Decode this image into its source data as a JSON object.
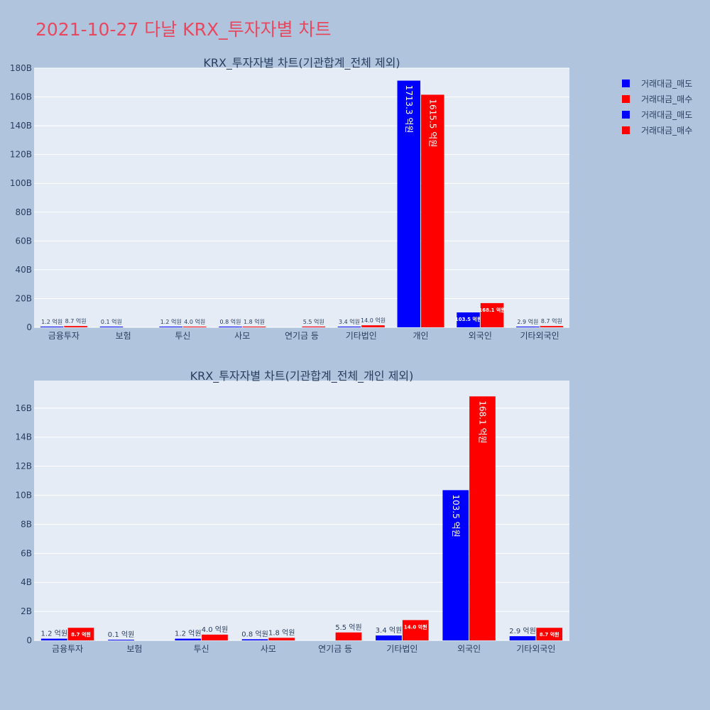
{
  "page_title": "2021-10-27 다날 KRX_투자자별 차트",
  "colors": {
    "sell": "#0000ff",
    "buy": "#ff0000",
    "plot_bg": "#e5ecf6",
    "page_bg": "#b0c4de",
    "title": "#e8485f"
  },
  "legend": [
    {
      "name": "거래대금_매도",
      "color": "#0000ff"
    },
    {
      "name": "거래대금_매수",
      "color": "#ff0000"
    },
    {
      "name": "거래대금_매도",
      "color": "#0000ff"
    },
    {
      "name": "거래대금_매수",
      "color": "#ff0000"
    }
  ],
  "chart_data": [
    {
      "type": "bar",
      "title": "KRX_투자자별 차트(기관합계_전체 제외)",
      "categories": [
        "금융투자",
        "보험",
        "투신",
        "사모",
        "연기금 등",
        "기타법인",
        "개인",
        "외국인",
        "기타외국인"
      ],
      "ylim": [
        0,
        180
      ],
      "yticks": [
        0,
        20,
        40,
        60,
        80,
        100,
        120,
        140,
        160,
        180
      ],
      "ytick_labels": [
        "0",
        "20B",
        "40B",
        "60B",
        "80B",
        "100B",
        "120B",
        "140B",
        "160B",
        "180B"
      ],
      "grid": true,
      "legend_position": "top-right",
      "series": [
        {
          "name": "거래대금_매도",
          "color": "#0000ff",
          "values": [
            0.12,
            0.01,
            0.12,
            0.08,
            0,
            0.34,
            171.33,
            10.35,
            0.29
          ],
          "labels": [
            "1.2 억원",
            "0.1 억원",
            "1.2 억원",
            "0.8 억원",
            "",
            "3.4 억원",
            "1713.3 억원",
            "103.5 억원",
            "2.9 억원"
          ]
        },
        {
          "name": "거래대금_매수",
          "color": "#ff0000",
          "values": [
            0.87,
            0,
            0.4,
            0.18,
            0.55,
            1.4,
            161.55,
            16.81,
            0.87
          ],
          "labels": [
            "8.7 억원",
            "",
            "4.0 억원",
            "1.8 억원",
            "5.5 억원",
            "14.0 억원",
            "1615.5 억원",
            "168.1 억원",
            "8.7 억원"
          ]
        }
      ]
    },
    {
      "type": "bar",
      "title": "KRX_투자자별 차트(기관합계_전체_개인 제외)",
      "categories": [
        "금융투자",
        "보험",
        "투신",
        "사모",
        "연기금 등",
        "기타법인",
        "외국인",
        "기타외국인"
      ],
      "ylim": [
        0,
        17.9
      ],
      "yticks": [
        0,
        2,
        4,
        6,
        8,
        10,
        12,
        14,
        16
      ],
      "ytick_labels": [
        "0",
        "2B",
        "4B",
        "6B",
        "8B",
        "10B",
        "12B",
        "14B",
        "16B"
      ],
      "grid": true,
      "series": [
        {
          "name": "거래대금_매도",
          "color": "#0000ff",
          "values": [
            0.12,
            0.01,
            0.12,
            0.08,
            0,
            0.34,
            10.35,
            0.29
          ],
          "labels": [
            "1.2 억원",
            "0.1 억원",
            "1.2 억원",
            "0.8 억원",
            "",
            "3.4 억원",
            "103.5 억원",
            "2.9 억원"
          ]
        },
        {
          "name": "거래대금_매수",
          "color": "#ff0000",
          "values": [
            0.87,
            0,
            0.4,
            0.18,
            0.55,
            1.4,
            16.81,
            0.87
          ],
          "labels": [
            "8.7 억원",
            "",
            "4.0 억원",
            "1.8 억원",
            "5.5 억원",
            "14.0 억원",
            "168.1 억원",
            "8.7 억원"
          ]
        }
      ]
    }
  ]
}
